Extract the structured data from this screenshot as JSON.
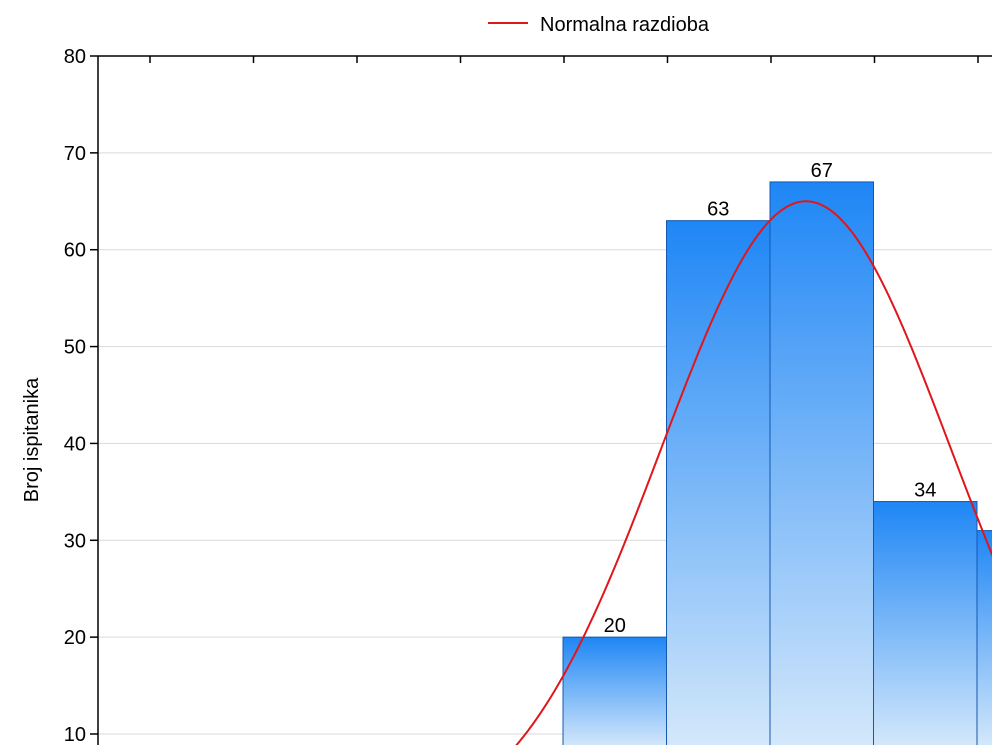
{
  "chart_data": {
    "type": "bar",
    "ylabel": "Broj ispitanika",
    "ylim": [
      10,
      80
    ],
    "yticks": [
      10,
      20,
      30,
      40,
      50,
      60,
      70,
      80
    ],
    "grid": true,
    "legend_position": "top",
    "bars": [
      {
        "value": 20,
        "label": "20"
      },
      {
        "value": 63,
        "label": "63"
      },
      {
        "value": 67,
        "label": "67"
      },
      {
        "value": 34,
        "label": "34"
      },
      {
        "value": 31,
        "label": ""
      }
    ],
    "series": [
      {
        "name": "Normalna razdioba",
        "type": "line",
        "peak": 65,
        "color": "#e0161b"
      }
    ],
    "colors": {
      "bar_top": "#1e86f5",
      "bar_bottom": "#d4e8fb",
      "bar_stroke": "#1558b0",
      "curve": "#e0161b",
      "grid": "#d9d9d9"
    }
  }
}
